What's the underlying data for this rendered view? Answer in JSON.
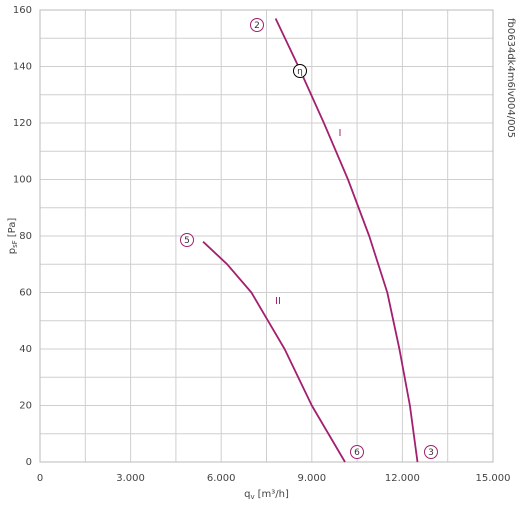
{
  "chart_data": {
    "type": "line",
    "xlabel": {
      "symbol": "q",
      "subscript": "v",
      "unit": "[m³/h]"
    },
    "ylabel": {
      "symbol": "p",
      "subscript": "sF",
      "unit": "[Pa]"
    },
    "code": "fb0634dk4m6lv004/005",
    "xlim": [
      0,
      15000
    ],
    "ylim": [
      0,
      160
    ],
    "xticks": [
      0,
      {
        "value": 3000,
        "label": "3.000"
      },
      {
        "value": 6000,
        "label": "6.000"
      },
      {
        "value": 9000,
        "label": "9.000"
      },
      {
        "value": 12000,
        "label": "12.000"
      },
      {
        "value": 15000,
        "label": "15.000"
      }
    ],
    "x_minor_ticks": [
      1500,
      4500,
      7500,
      10500,
      13500
    ],
    "yticks": [
      0,
      20,
      40,
      60,
      80,
      100,
      120,
      140,
      160
    ],
    "y_minor_ticks": [
      10,
      30,
      50,
      70,
      90,
      110,
      130,
      150
    ],
    "grid": true,
    "series": [
      {
        "name": "I",
        "color": "#a3206f",
        "x": [
          7800,
          8600,
          9400,
          10200,
          10900,
          11500,
          11900,
          12250,
          12500
        ],
        "values": [
          157,
          139,
          120,
          100,
          80,
          60,
          40,
          20,
          0
        ]
      },
      {
        "name": "II",
        "color": "#a3206f",
        "x": [
          5400,
          6200,
          7000,
          7550,
          8100,
          9000,
          10100
        ],
        "values": [
          78,
          70,
          60,
          50,
          40,
          20,
          0
        ]
      }
    ],
    "markers": [
      "2",
      "η",
      "5",
      "6",
      "3"
    ]
  }
}
